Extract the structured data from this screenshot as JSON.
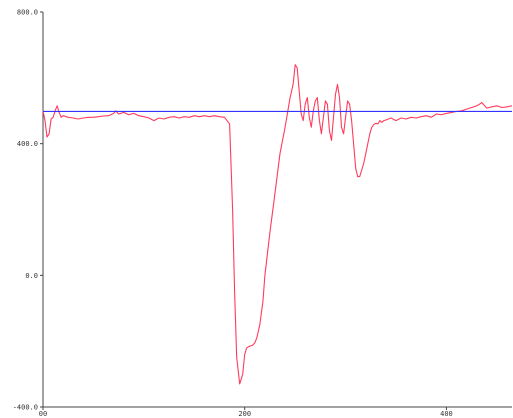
{
  "chart_data": {
    "type": "line",
    "title": "",
    "xlabel": "",
    "ylabel": "",
    "xlim": [
      0,
      465
    ],
    "ylim": [
      -400,
      800
    ],
    "grid": false,
    "x_ticks": [
      {
        "value": 0,
        "label": "00"
      },
      {
        "value": 200,
        "label": "200"
      },
      {
        "value": 400,
        "label": "400"
      }
    ],
    "y_ticks": [
      {
        "value": 800,
        "label": "800.0"
      },
      {
        "value": 400,
        "label": "400.0"
      },
      {
        "value": 0,
        "label": "0.0"
      },
      {
        "value": -400,
        "label": "-400.0"
      }
    ],
    "series": [
      {
        "color": "#ff3b5c",
        "x": [
          0,
          2,
          4,
          6,
          8,
          10,
          12,
          14,
          16,
          18,
          20,
          25,
          30,
          35,
          40,
          45,
          50,
          55,
          60,
          65,
          70,
          72,
          75,
          80,
          85,
          90,
          95,
          100,
          105,
          110,
          115,
          120,
          125,
          130,
          135,
          140,
          145,
          150,
          155,
          160,
          165,
          170,
          175,
          180,
          185,
          188,
          190,
          192,
          195,
          198,
          200,
          202,
          205,
          208,
          210,
          212,
          215,
          218,
          220,
          225,
          230,
          235,
          240,
          245,
          248,
          250,
          252,
          254,
          256,
          258,
          260,
          262,
          264,
          266,
          268,
          270,
          272,
          274,
          276,
          278,
          280,
          282,
          284,
          286,
          288,
          290,
          292,
          294,
          296,
          298,
          300,
          302,
          304,
          306,
          308,
          310,
          312,
          314,
          316,
          318,
          320,
          322,
          324,
          326,
          328,
          330,
          332,
          334,
          336,
          338,
          340,
          345,
          350,
          355,
          360,
          365,
          370,
          375,
          380,
          385,
          390,
          395,
          400,
          405,
          410,
          415,
          420,
          425,
          430,
          432,
          435,
          440,
          445,
          450,
          455,
          460,
          465
        ],
        "y": [
          500,
          470,
          420,
          430,
          475,
          480,
          500,
          515,
          495,
          480,
          485,
          480,
          478,
          475,
          478,
          480,
          480,
          482,
          484,
          485,
          492,
          500,
          490,
          495,
          488,
          492,
          485,
          482,
          478,
          470,
          478,
          475,
          480,
          482,
          478,
          482,
          480,
          485,
          482,
          485,
          482,
          485,
          482,
          480,
          460,
          200,
          -50,
          -250,
          -330,
          -300,
          -240,
          -220,
          -215,
          -212,
          -205,
          -190,
          -150,
          -80,
          0,
          130,
          250,
          370,
          450,
          540,
          580,
          640,
          630,
          560,
          490,
          470,
          520,
          540,
          480,
          450,
          500,
          530,
          540,
          470,
          430,
          480,
          530,
          520,
          440,
          410,
          480,
          550,
          580,
          540,
          450,
          430,
          480,
          530,
          520,
          470,
          400,
          325,
          300,
          300,
          320,
          340,
          370,
          400,
          430,
          450,
          458,
          462,
          460,
          470,
          465,
          470,
          472,
          478,
          470,
          478,
          475,
          480,
          478,
          482,
          485,
          480,
          490,
          488,
          492,
          495,
          498,
          500,
          505,
          510,
          515,
          518,
          525,
          508,
          512,
          515,
          510,
          512,
          515
        ]
      },
      {
        "color": "#3333ff",
        "x": [
          0,
          465
        ],
        "y": [
          498,
          498
        ]
      }
    ]
  }
}
